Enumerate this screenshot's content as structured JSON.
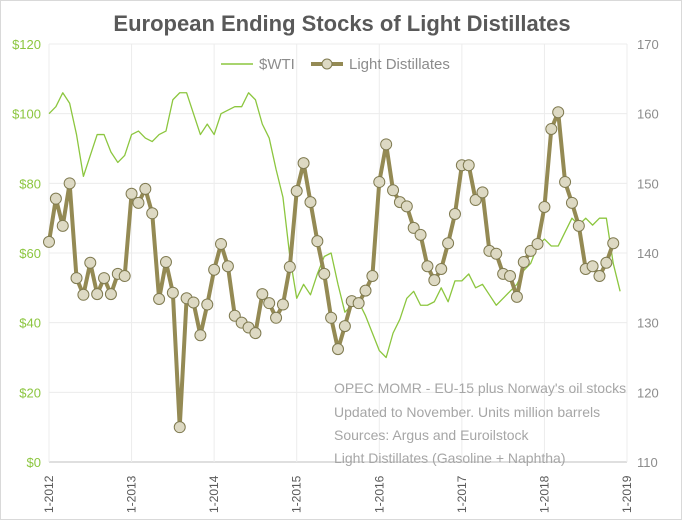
{
  "chart_data": {
    "type": "line",
    "title": "European Ending Stocks of Light Distillates",
    "x_tick_labels": [
      "1-2012",
      "1-2013",
      "1-2014",
      "1-2015",
      "1-2016",
      "1-2017",
      "1-2018",
      "1-2019"
    ],
    "y_left": {
      "label": "$WTI",
      "ticks": [
        "$0",
        "$20",
        "$40",
        "$60",
        "$80",
        "$100",
        "$120"
      ],
      "range": [
        0,
        120
      ]
    },
    "y_right": {
      "label": "Light Distillates",
      "ticks": [
        "110",
        "120",
        "130",
        "140",
        "150",
        "160",
        "170"
      ],
      "range": [
        110,
        170
      ]
    },
    "grid": true,
    "legend_position": "top-center",
    "series": [
      {
        "name": "$WTI",
        "axis": "left",
        "color": "#8cc63f",
        "start": "1-2012",
        "values": [
          100,
          102,
          106,
          103,
          94,
          82,
          88,
          94,
          94,
          89,
          86,
          88,
          94,
          95,
          93,
          92,
          94,
          95,
          104,
          106,
          106,
          100,
          94,
          97,
          94,
          100,
          101,
          102,
          102,
          106,
          104,
          97,
          93,
          84,
          76,
          59,
          47,
          51,
          48,
          54,
          59,
          60,
          51,
          43,
          45,
          46,
          42,
          37,
          32,
          30,
          37,
          41,
          47,
          49,
          45,
          45,
          46,
          50,
          46,
          52,
          52,
          54,
          50,
          51,
          48,
          45,
          47,
          49,
          51,
          55,
          57,
          62,
          64,
          62,
          62,
          66,
          70,
          68,
          70,
          68,
          70,
          70,
          57,
          49
        ]
      },
      {
        "name": "Light Distillates",
        "axis": "right",
        "color": "#948a54",
        "start": "1-2012",
        "values": [
          141.6,
          147.8,
          143.9,
          150.0,
          136.4,
          134.0,
          138.6,
          134.1,
          136.4,
          134.1,
          137.0,
          136.7,
          148.5,
          147.2,
          149.2,
          145.7,
          133.4,
          138.7,
          134.3,
          115.0,
          133.5,
          132.9,
          128.2,
          132.6,
          137.6,
          141.3,
          138.1,
          131.0,
          130.0,
          129.3,
          128.5,
          134.1,
          132.8,
          130.7,
          132.6,
          138.0,
          148.9,
          152.9,
          147.3,
          141.7,
          137.0,
          130.7,
          126.2,
          129.5,
          133.1,
          132.8,
          134.6,
          136.7,
          150.2,
          155.6,
          149.0,
          147.3,
          146.7,
          143.6,
          142.6,
          138.1,
          136.1,
          137.7,
          141.4,
          145.6,
          152.6,
          152.6,
          147.6,
          148.7,
          140.3,
          139.9,
          137.0,
          136.7,
          133.7,
          138.7,
          140.3,
          141.3,
          146.6,
          157.8,
          160.2,
          150.2,
          147.2,
          143.9,
          137.7,
          138.1,
          136.7,
          138.6,
          141.4
        ]
      }
    ],
    "annotations": [
      "OPEC MOMR - EU-15 plus Norway's oil stocks",
      "Updated to November. Units million barrels",
      "Sources: Argus and Euroilstock",
      "Light Distillates (Gasoline + Naphtha)"
    ]
  }
}
